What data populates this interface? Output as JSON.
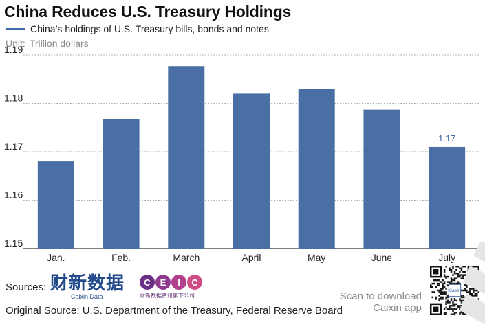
{
  "header": {
    "title": "China Reduces U.S. Treasury Holdings",
    "legend_label": "China’s holdings of U.S. Treasury bills, bonds and notes",
    "unit_label": "Unit:",
    "unit_value": "Trillion dollars"
  },
  "colors": {
    "bar": "#4a6fa5",
    "label": "#3e6aa6",
    "grid": "#999999"
  },
  "chart_data": {
    "type": "bar",
    "categories": [
      "Jan.",
      "Feb.",
      "March",
      "April",
      "May",
      "June",
      "July"
    ],
    "values": [
      1.168,
      1.1767,
      1.1877,
      1.182,
      1.183,
      1.1787,
      1.171
    ],
    "data_labels": [
      "",
      "",
      "",
      "",
      "",
      "",
      "1.17"
    ],
    "yticks": [
      "1.15",
      "1.16",
      "1.17",
      "1.18",
      "1.19"
    ],
    "ylim": [
      1.15,
      1.19
    ],
    "ylabel": "Trillion dollars",
    "grid": true
  },
  "footer": {
    "sources_label": "Sources:",
    "caixin_cn": "财新数据",
    "caixin_en": "Caixin Data",
    "ceic_letters": [
      "C",
      "E",
      "I",
      "C"
    ],
    "ceic_sub": "财新数据资讯旗下公司",
    "original_source": "Original Source: U.S. Department of the Treasury, Federal Reserve Board",
    "scan_line1": "Scan to download",
    "scan_line2": "Caixin app",
    "qr_label": "Caixin"
  }
}
